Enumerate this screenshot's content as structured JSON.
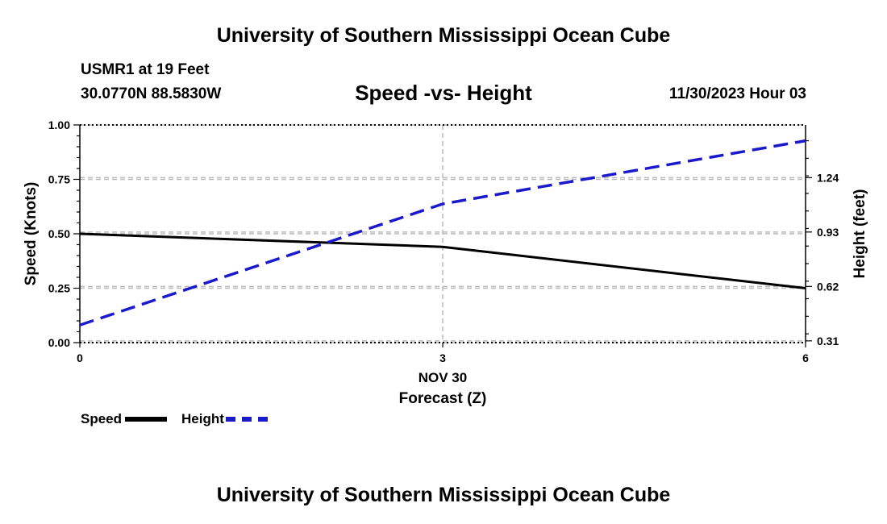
{
  "header": {
    "title": "University of Southern Mississippi Ocean Cube",
    "station": "USMR1 at 19 Feet",
    "coords": "30.0770N  88.5830W",
    "timestamp": "11/30/2023 Hour 03"
  },
  "footer": {
    "title": "University of Southern Mississippi Ocean Cube"
  },
  "legend": {
    "speed_label": "Speed",
    "height_label": "Height"
  },
  "colors": {
    "speed": "#000000",
    "height": "#1a1acc",
    "grid": "#bbbbbb"
  },
  "chart_data": {
    "type": "line",
    "title": "Speed -vs- Height",
    "xlabel": "Forecast (Z)",
    "x_date_label": "NOV 30",
    "ylabel": "Speed (Knots)",
    "y2label": "Height (feet)",
    "x": [
      0,
      3,
      6
    ],
    "xlim": [
      0,
      6
    ],
    "xticks": [
      "0",
      "3",
      "6"
    ],
    "ylim": [
      0,
      1
    ],
    "yticks": [
      "0.00",
      "0.25",
      "0.50",
      "0.75",
      "1.00"
    ],
    "y2lim": [
      0.3,
      1.54
    ],
    "y2ticks": [
      "0.31",
      "0.62",
      "0.93",
      "1.24"
    ],
    "series": [
      {
        "name": "Speed",
        "axis": "left",
        "values": [
          0.5,
          0.44,
          0.25
        ]
      },
      {
        "name": "Height",
        "axis": "right",
        "values": [
          0.4,
          1.09,
          1.45
        ]
      }
    ],
    "grid": true
  }
}
